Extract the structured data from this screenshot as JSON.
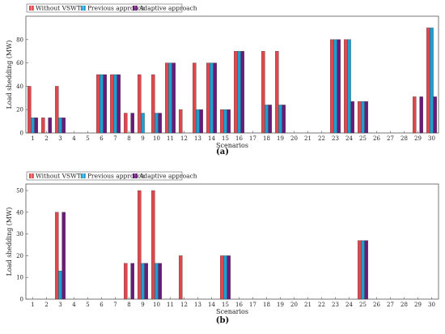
{
  "colors": {
    "without": "#e0474c",
    "previous": "#1f9fd0",
    "adaptive": "#6a1b7a"
  },
  "chart_data": [
    {
      "type": "bar",
      "caption": "(a)",
      "xlabel": "Scenarios",
      "ylabel": "Load shedding (MW)",
      "ylim": [
        0,
        100
      ],
      "yticks": [
        0,
        20,
        40,
        60,
        80
      ],
      "grid": false,
      "legend": "top-left",
      "categories": [
        "1",
        "2",
        "3",
        "4",
        "5",
        "6",
        "7",
        "8",
        "9",
        "10",
        "11",
        "12",
        "13",
        "14",
        "15",
        "16",
        "17",
        "18",
        "19",
        "20",
        "21",
        "22",
        "23",
        "24",
        "25",
        "26",
        "27",
        "28",
        "29",
        "30"
      ],
      "series": [
        {
          "name": "Without VSWTs",
          "values": [
            40,
            13,
            40,
            0,
            0,
            50,
            50,
            17,
            50,
            50,
            60,
            20,
            60,
            60,
            20,
            70,
            0,
            70,
            70,
            0,
            0,
            0,
            80,
            80,
            27,
            0,
            0,
            0,
            31,
            90
          ]
        },
        {
          "name": "Previous approach",
          "values": [
            13,
            0,
            13,
            0,
            0,
            50,
            50,
            0,
            17,
            17,
            60,
            0,
            20,
            60,
            20,
            70,
            0,
            24,
            24,
            0,
            0,
            0,
            80,
            80,
            27,
            0,
            0,
            0,
            0,
            90
          ]
        },
        {
          "name": "Adaptive approach",
          "values": [
            13,
            13,
            13,
            0,
            0,
            50,
            50,
            17,
            0,
            17,
            60,
            0,
            20,
            60,
            20,
            70,
            0,
            24,
            24,
            0,
            0,
            0,
            80,
            27,
            27,
            0,
            0,
            0,
            31,
            31
          ]
        }
      ]
    },
    {
      "type": "bar",
      "caption": "(b)",
      "xlabel": "Scenarios",
      "ylabel": "Load shedding (MW)",
      "ylim": [
        0,
        53
      ],
      "yticks": [
        0,
        10,
        20,
        30,
        40,
        50
      ],
      "grid": false,
      "legend": "top-left",
      "categories": [
        "1",
        "2",
        "3",
        "4",
        "5",
        "6",
        "7",
        "8",
        "9",
        "10",
        "11",
        "12",
        "13",
        "14",
        "15",
        "16",
        "17",
        "18",
        "19",
        "20",
        "21",
        "22",
        "23",
        "24",
        "25",
        "26",
        "27",
        "28",
        "29",
        "30"
      ],
      "series": [
        {
          "name": "Without VSWTs",
          "values": [
            0,
            0,
            40,
            0,
            0,
            0,
            0,
            16.5,
            50,
            50,
            0,
            20,
            0,
            0,
            20,
            0,
            0,
            0,
            0,
            0,
            0,
            0,
            0,
            0,
            27,
            0,
            0,
            0,
            0,
            0
          ]
        },
        {
          "name": "Previous approach",
          "values": [
            0,
            0,
            13,
            0,
            0,
            0,
            0,
            0,
            16.5,
            16.5,
            0,
            0,
            0,
            0,
            20,
            0,
            0,
            0,
            0,
            0,
            0,
            0,
            0,
            0,
            27,
            0,
            0,
            0,
            0,
            0
          ]
        },
        {
          "name": "Adaptive approach",
          "values": [
            0,
            0,
            40,
            0,
            0,
            0,
            0,
            16.5,
            16.5,
            16.5,
            0,
            0,
            0,
            0,
            20,
            0,
            0,
            0,
            0,
            0,
            0,
            0,
            0,
            0,
            27,
            0,
            0,
            0,
            0,
            0
          ]
        }
      ]
    }
  ]
}
